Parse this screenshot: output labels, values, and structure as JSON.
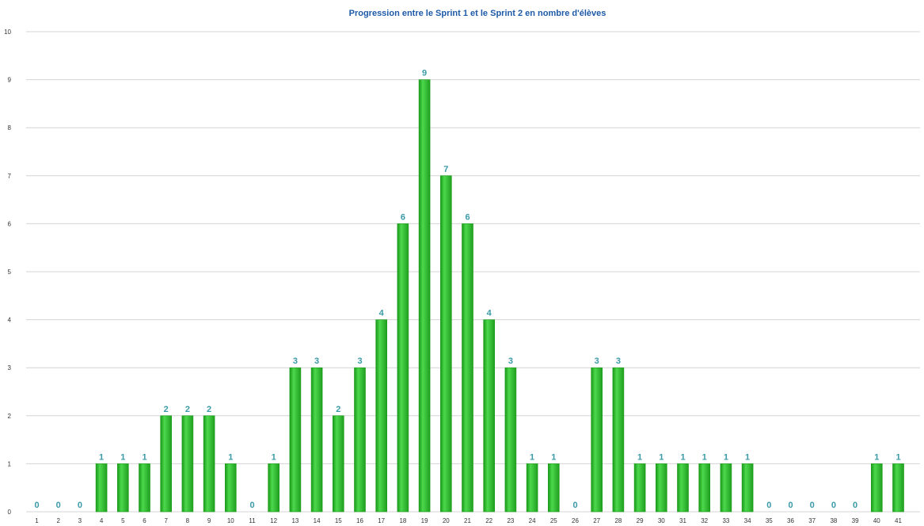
{
  "colors": {
    "bar_fill": "#2ec02e",
    "bar_dark": "#1a9a1a",
    "bar_light": "#4cd84c",
    "label_color": "#3a9aa8",
    "title_color": "#1e5aa8",
    "grid_color": "#d4d4d4"
  },
  "chart_data": {
    "type": "bar",
    "title": "Progression entre le Sprint 1 et le Sprint 2 en nombre d'élèves",
    "xlabel": "",
    "ylabel": "",
    "categories": [
      "1",
      "2",
      "3",
      "4",
      "5",
      "6",
      "7",
      "8",
      "9",
      "10",
      "11",
      "12",
      "13",
      "14",
      "15",
      "16",
      "17",
      "18",
      "19",
      "20",
      "21",
      "22",
      "23",
      "24",
      "25",
      "26",
      "27",
      "28",
      "29",
      "30",
      "31",
      "32",
      "33",
      "34",
      "35",
      "36",
      "37",
      "38",
      "39",
      "40",
      "41"
    ],
    "values": [
      0,
      0,
      0,
      1,
      1,
      1,
      2,
      2,
      2,
      1,
      0,
      1,
      3,
      3,
      2,
      3,
      4,
      6,
      9,
      7,
      6,
      4,
      3,
      1,
      1,
      0,
      3,
      3,
      1,
      1,
      1,
      1,
      1,
      1,
      0,
      0,
      0,
      0,
      0,
      1,
      1
    ],
    "ylim": [
      0,
      10
    ],
    "yticks": [
      0,
      1,
      2,
      3,
      4,
      5,
      6,
      7,
      8,
      9,
      10
    ],
    "grid": true,
    "legend": "none",
    "data_labels": true
  }
}
